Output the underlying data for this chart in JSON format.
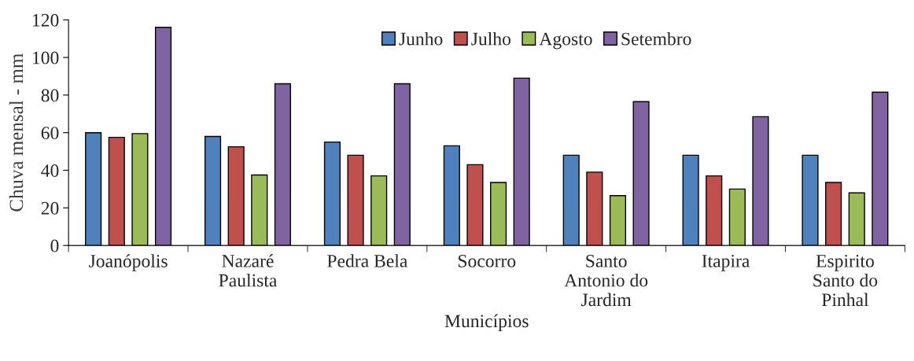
{
  "chart_data": {
    "type": "bar",
    "xlabel": "Municípios",
    "ylabel": "Chuva mensal - mm",
    "categories": [
      "Joanópolis",
      "Nazaré\nPaulista",
      "Pedra Bela",
      "Socorro",
      "Santo\nAntonio do\nJardim",
      "Itapira",
      "Espirito\nSanto do\nPinhal"
    ],
    "series": [
      {
        "name": "Junho",
        "color": "#4f81bd",
        "values": [
          60,
          58,
          55,
          53,
          48,
          48,
          48
        ]
      },
      {
        "name": "Julho",
        "color": "#c0504d",
        "values": [
          57.5,
          52.5,
          48,
          43,
          39,
          37,
          33.5
        ]
      },
      {
        "name": "Agosto",
        "color": "#9bbb59",
        "values": [
          59.5,
          37.5,
          37,
          33.5,
          26.5,
          30,
          28
        ]
      },
      {
        "name": "Setembro",
        "color": "#8064a2",
        "values": [
          116,
          86,
          86,
          89,
          76.5,
          68.5,
          81.5
        ]
      }
    ],
    "ylim": [
      0,
      120
    ],
    "yticks": [
      0,
      20,
      40,
      60,
      80,
      100,
      120
    ],
    "grid": false,
    "legend": "top"
  }
}
